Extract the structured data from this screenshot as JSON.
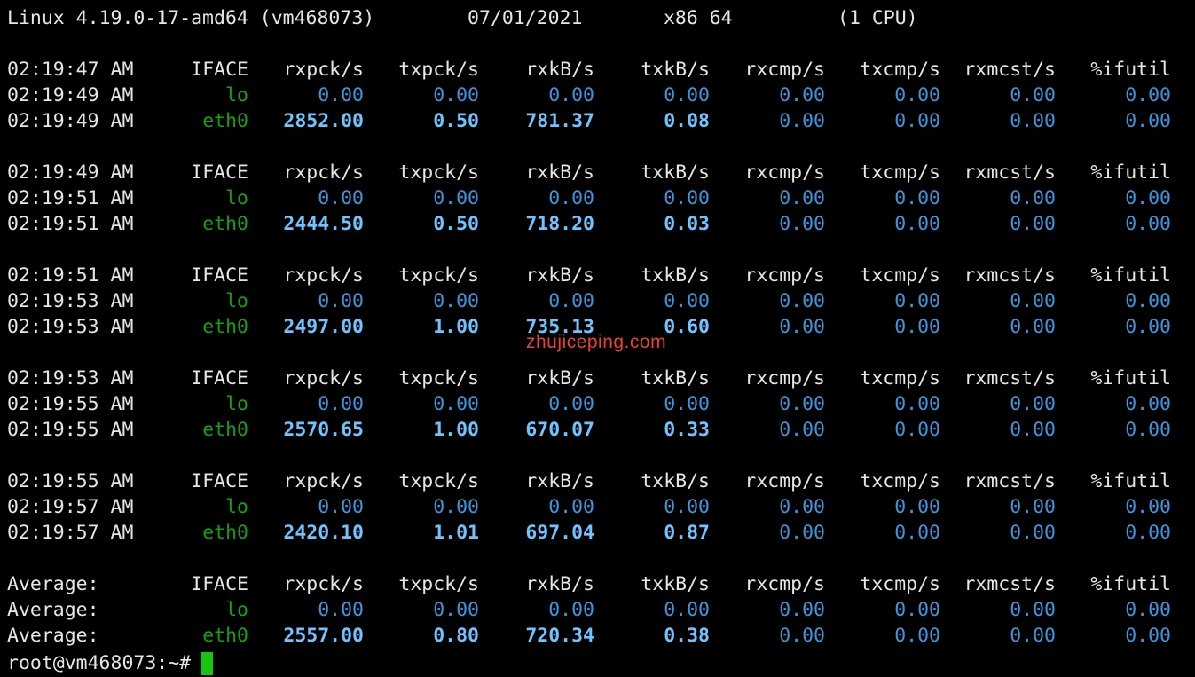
{
  "partial_top_line": "Linux 4.19.0-17-amd64 (vm468073)        07/01/2021      _x86_64_        (1 CPU)",
  "sysinfo": {
    "kernel": "Linux 4.19.0-17-amd64 (vm468073)",
    "date": "07/01/2021",
    "arch": "_x86_64_",
    "cpu": "(1 CPU)"
  },
  "columns": [
    "IFACE",
    "rxpck/s",
    "txpck/s",
    "rxkB/s",
    "txkB/s",
    "rxcmp/s",
    "txcmp/s",
    "rxmcst/s",
    "%ifutil"
  ],
  "blocks": [
    {
      "header_time": "02:19:47 AM",
      "rows": [
        {
          "time": "02:19:49 AM",
          "iface": "lo",
          "vals": [
            "0.00",
            "0.00",
            "0.00",
            "0.00",
            "0.00",
            "0.00",
            "0.00",
            "0.00"
          ]
        },
        {
          "time": "02:19:49 AM",
          "iface": "eth0",
          "vals": [
            "2852.00",
            "0.50",
            "781.37",
            "0.08",
            "0.00",
            "0.00",
            "0.00",
            "0.00"
          ]
        }
      ]
    },
    {
      "header_time": "02:19:49 AM",
      "rows": [
        {
          "time": "02:19:51 AM",
          "iface": "lo",
          "vals": [
            "0.00",
            "0.00",
            "0.00",
            "0.00",
            "0.00",
            "0.00",
            "0.00",
            "0.00"
          ]
        },
        {
          "time": "02:19:51 AM",
          "iface": "eth0",
          "vals": [
            "2444.50",
            "0.50",
            "718.20",
            "0.03",
            "0.00",
            "0.00",
            "0.00",
            "0.00"
          ]
        }
      ]
    },
    {
      "header_time": "02:19:51 AM",
      "rows": [
        {
          "time": "02:19:53 AM",
          "iface": "lo",
          "vals": [
            "0.00",
            "0.00",
            "0.00",
            "0.00",
            "0.00",
            "0.00",
            "0.00",
            "0.00"
          ]
        },
        {
          "time": "02:19:53 AM",
          "iface": "eth0",
          "vals": [
            "2497.00",
            "1.00",
            "735.13",
            "0.60",
            "0.00",
            "0.00",
            "0.00",
            "0.00"
          ]
        }
      ]
    },
    {
      "header_time": "02:19:53 AM",
      "rows": [
        {
          "time": "02:19:55 AM",
          "iface": "lo",
          "vals": [
            "0.00",
            "0.00",
            "0.00",
            "0.00",
            "0.00",
            "0.00",
            "0.00",
            "0.00"
          ]
        },
        {
          "time": "02:19:55 AM",
          "iface": "eth0",
          "vals": [
            "2570.65",
            "1.00",
            "670.07",
            "0.33",
            "0.00",
            "0.00",
            "0.00",
            "0.00"
          ]
        }
      ]
    },
    {
      "header_time": "02:19:55 AM",
      "rows": [
        {
          "time": "02:19:57 AM",
          "iface": "lo",
          "vals": [
            "0.00",
            "0.00",
            "0.00",
            "0.00",
            "0.00",
            "0.00",
            "0.00",
            "0.00"
          ]
        },
        {
          "time": "02:19:57 AM",
          "iface": "eth0",
          "vals": [
            "2420.10",
            "1.01",
            "697.04",
            "0.87",
            "0.00",
            "0.00",
            "0.00",
            "0.00"
          ]
        }
      ]
    },
    {
      "header_time": "Average:",
      "rows": [
        {
          "time": "Average:",
          "iface": "lo",
          "vals": [
            "0.00",
            "0.00",
            "0.00",
            "0.00",
            "0.00",
            "0.00",
            "0.00",
            "0.00"
          ]
        },
        {
          "time": "Average:",
          "iface": "eth0",
          "vals": [
            "2557.00",
            "0.80",
            "720.34",
            "0.38",
            "0.00",
            "0.00",
            "0.00",
            "0.00"
          ]
        }
      ]
    }
  ],
  "prompt": "root@vm468073:~#",
  "watermark": "zhujiceping.com",
  "colors": {
    "background": "#000000",
    "text": "#e6e6e6",
    "iface": "#13a10e",
    "value": "#3a96dd",
    "value_bold": "#6fc3ff",
    "cursor": "#16c60c",
    "watermark": "#e8413c"
  }
}
